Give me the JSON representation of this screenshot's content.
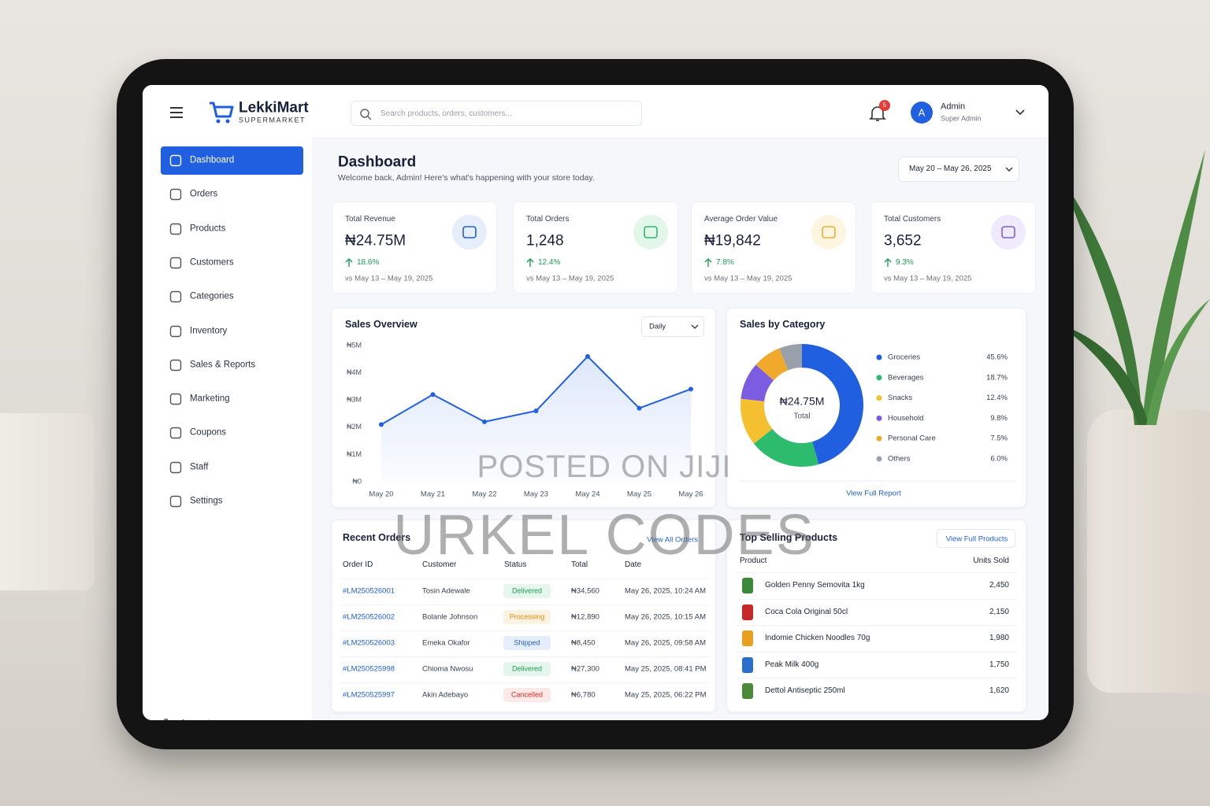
{
  "watermark": [
    "POSTED ON JIJI",
    "URKEL CODES"
  ],
  "header": {
    "brand": "LekkiMart",
    "tagline": "SUPERMARKET",
    "search_placeholder": "Search products, orders, customers...",
    "notifications": "5",
    "user": {
      "initial": "A",
      "name": "Admin",
      "role": "Super Admin"
    }
  },
  "sidebar": {
    "items": [
      "Dashboard",
      "Orders",
      "Products",
      "Customers",
      "Categories",
      "Inventory",
      "Sales & Reports",
      "Marketing",
      "Coupons",
      "Staff",
      "Settings"
    ],
    "active": 0,
    "logout": "Logout"
  },
  "page": {
    "title": "Dashboard",
    "subtitle": "Welcome back, Admin! Here's what's happening with your store today.",
    "date_range": "May 20 – May 26, 2025"
  },
  "stats": [
    {
      "label": "Total Revenue",
      "value": "₦24.75M",
      "change": "18.6%",
      "compare": "vs May 13 – May 19, 2025"
    },
    {
      "label": "Total Orders",
      "value": "1,248",
      "change": "12.4%",
      "compare": "vs May 13 – May 19, 2025"
    },
    {
      "label": "Average Order Value",
      "value": "₦19,842",
      "change": "7.8%",
      "compare": "vs May 13 – May 19, 2025"
    },
    {
      "label": "Total Customers",
      "value": "3,652",
      "change": "9.3%",
      "compare": "vs May 13 – May 19, 2025"
    }
  ],
  "chart_data": [
    {
      "type": "line",
      "title": "Sales Overview",
      "period": "Daily",
      "categories": [
        "May 20",
        "May 21",
        "May 22",
        "May 23",
        "May 24",
        "May 25",
        "May 26"
      ],
      "values": [
        2.1,
        3.2,
        2.2,
        2.6,
        4.6,
        2.7,
        3.4
      ],
      "color": "#2160e0",
      "ylim": [
        0,
        5
      ],
      "yticks": [
        {
          "value": 0,
          "label": "₦0"
        },
        {
          "value": 1,
          "label": "₦1M"
        },
        {
          "value": 2,
          "label": "₦2M"
        },
        {
          "value": 3,
          "label": "₦3M"
        },
        {
          "value": 4,
          "label": "₦4M"
        },
        {
          "value": 5,
          "label": "₦5M"
        }
      ]
    },
    {
      "type": "pie",
      "title": "Sales by Category",
      "center_value": "₦24.75M",
      "center_label": "Total",
      "categories": [
        "Groceries",
        "Beverages",
        "Snacks",
        "Household",
        "Personal Care",
        "Others"
      ],
      "values": [
        45.6,
        18.7,
        12.4,
        9.8,
        7.5,
        6.0
      ],
      "value_labels": [
        "45.6%",
        "18.7%",
        "12.4%",
        "9.8%",
        "7.5%",
        "6.0%"
      ],
      "colors": [
        "#1f5fe0",
        "#2dbb6e",
        "#f5c030",
        "#7c5ce0",
        "#f0a92a",
        "#9aa0ab"
      ],
      "link": "View Full Report"
    }
  ],
  "recent_orders": {
    "title": "Recent Orders",
    "link": "View All Orders",
    "columns": [
      "Order ID",
      "Customer",
      "Status",
      "Total",
      "Date"
    ],
    "rows": [
      [
        "#LM250526001",
        "Tosin Adewale",
        "Delivered",
        "₦34,560",
        "May 26, 2025, 10:24 AM"
      ],
      [
        "#LM250526002",
        "Bolanle Johnson",
        "Processing",
        "₦12,890",
        "May 26, 2025, 10:15 AM"
      ],
      [
        "#LM250526003",
        "Emeka Okafor",
        "Shipped",
        "₦8,450",
        "May 26, 2025, 09:58 AM"
      ],
      [
        "#LM250525998",
        "Chioma Nwosu",
        "Delivered",
        "₦27,300",
        "May 25, 2025, 08:41 PM"
      ],
      [
        "#LM250525997",
        "Akin Adebayo",
        "Cancelled",
        "₦6,780",
        "May 25, 2025, 06:22 PM"
      ]
    ]
  },
  "top_products": {
    "title": "Top Selling Products",
    "link": "View Full Products",
    "columns": [
      "Product",
      "Units Sold"
    ],
    "rows": [
      [
        "Golden Penny Semovita 1kg",
        "2,450"
      ],
      [
        "Coca Cola Original 50cl",
        "2,150"
      ],
      [
        "Indomie Chicken Noodles 70g",
        "1,980"
      ],
      [
        "Peak Milk 400g",
        "1,750"
      ],
      [
        "Dettol Antiseptic 250ml",
        "1,620"
      ]
    ]
  }
}
